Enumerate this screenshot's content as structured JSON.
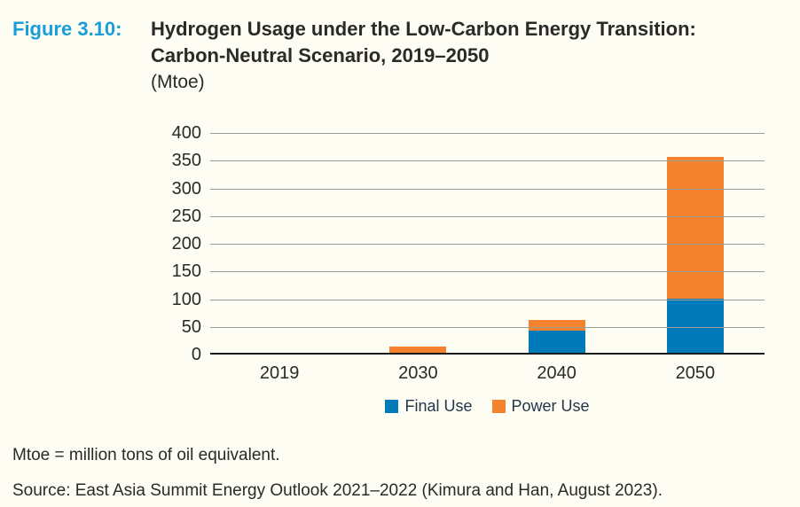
{
  "figure": {
    "label": "Figure 3.10:",
    "title_line1": "Hydrogen Usage under the Low-Carbon Energy Transition:",
    "title_line2": "Carbon-Neutral Scenario, 2019–2050",
    "unit_line": "(Mtoe)"
  },
  "chart_data": {
    "type": "bar",
    "stacked": true,
    "title": "Hydrogen Usage under the Low-Carbon Energy Transition: Carbon-Neutral Scenario, 2019–2050 (Mtoe)",
    "categories": [
      "2019",
      "2030",
      "2040",
      "2050"
    ],
    "series": [
      {
        "name": "Final Use",
        "color": "#007AB8",
        "values": [
          0,
          0,
          40,
          98
        ]
      },
      {
        "name": "Power Use",
        "color": "#F5822C",
        "values": [
          0,
          12,
          20,
          255
        ]
      }
    ],
    "totals": [
      0,
      12,
      60,
      353
    ],
    "xlabel": "",
    "ylabel": "",
    "ylim": [
      0,
      400
    ],
    "yticks": [
      0,
      50,
      100,
      150,
      200,
      250,
      300,
      350,
      400
    ],
    "grid": true,
    "legend_position": "bottom"
  },
  "footnotes": {
    "note": "Mtoe = million tons of oil equivalent.",
    "source": "Source: East Asia Summit Energy Outlook 2021–2022 (Kimura and Han, August 2023)."
  },
  "colors": {
    "background": "#FDFDF3",
    "figure_label": "#1B9DD9",
    "final_use": "#007AB8",
    "power_use": "#F5822C",
    "gridline": "#9B9B97",
    "axis": "#1C1C1A",
    "text": "#2B2A28"
  }
}
